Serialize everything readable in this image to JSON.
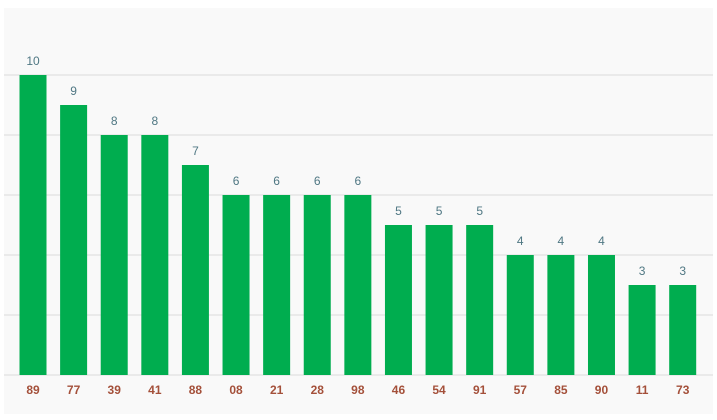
{
  "chart_data": {
    "type": "bar",
    "categories": [
      "89",
      "77",
      "39",
      "41",
      "88",
      "08",
      "21",
      "28",
      "98",
      "46",
      "54",
      "91",
      "57",
      "85",
      "90",
      "11",
      "73"
    ],
    "values": [
      10,
      9,
      8,
      8,
      7,
      6,
      6,
      6,
      6,
      5,
      5,
      5,
      4,
      4,
      4,
      3,
      3
    ],
    "color": "#00ad4f",
    "ylim": [
      0,
      12
    ],
    "yticks": [
      0,
      2,
      4,
      6,
      8,
      10
    ],
    "grid": true
  }
}
